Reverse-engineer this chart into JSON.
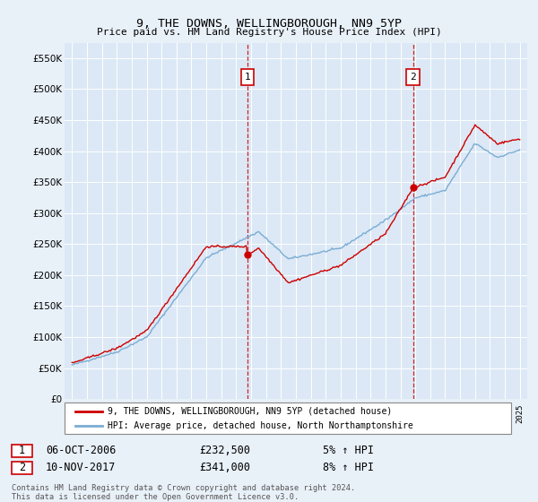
{
  "title": "9, THE DOWNS, WELLINGBOROUGH, NN9 5YP",
  "subtitle": "Price paid vs. HM Land Registry's House Price Index (HPI)",
  "background_color": "#e8f0f8",
  "plot_bg_color": "#dce8f5",
  "ylim": [
    0,
    575000
  ],
  "yticks": [
    0,
    50000,
    100000,
    150000,
    200000,
    250000,
    300000,
    350000,
    400000,
    450000,
    500000,
    550000
  ],
  "sale1_year": 2006.75,
  "sale1_price": 232500,
  "sale2_year": 2017.85,
  "sale2_price": 341000,
  "legend_line1": "9, THE DOWNS, WELLINGBOROUGH, NN9 5YP (detached house)",
  "legend_line2": "HPI: Average price, detached house, North Northamptonshire",
  "annotation1_date": "06-OCT-2006",
  "annotation1_price": "£232,500",
  "annotation1_hpi": "5% ↑ HPI",
  "annotation2_date": "10-NOV-2017",
  "annotation2_price": "£341,000",
  "annotation2_hpi": "8% ↑ HPI",
  "footnote_line1": "Contains HM Land Registry data © Crown copyright and database right 2024.",
  "footnote_line2": "This data is licensed under the Open Government Licence v3.0.",
  "red_line_color": "#cc0000",
  "blue_line_color": "#7aadd4",
  "dashed_line_color": "#cc0000",
  "annotation_box_color": "#cc0000",
  "grid_color": "#ffffff",
  "spine_color": "#cccccc"
}
